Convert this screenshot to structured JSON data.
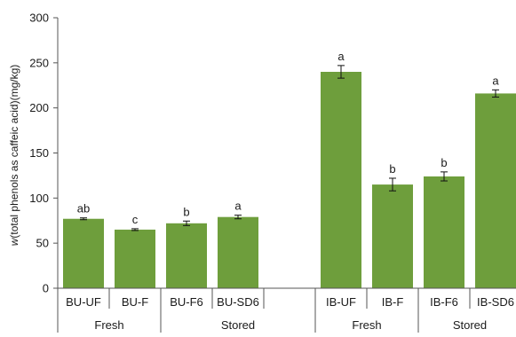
{
  "chart_data": {
    "type": "bar",
    "ylabel_italic": "w",
    "ylabel_rest": "(total phenols as  caffeic acid)(mg/kg)",
    "ylim": [
      0,
      300
    ],
    "yticks": [
      0,
      50,
      100,
      150,
      200,
      250,
      300
    ],
    "grid": false,
    "legend": "none",
    "bar_color": "#6e9e3c",
    "categories": [
      "BU-UF",
      "BU-F",
      "BU-F6",
      "BU-SD6",
      "",
      "IB-UF",
      "IB-F",
      "IB-F6",
      "IB-SD6"
    ],
    "values": [
      77,
      65,
      72,
      79,
      null,
      240,
      115,
      124,
      216
    ],
    "errors": [
      1,
      1,
      2.5,
      2,
      null,
      7,
      7,
      5,
      4
    ],
    "significance": [
      "ab",
      "c",
      "b",
      "a",
      "",
      "a",
      "b",
      "b",
      "a"
    ],
    "groups": [
      {
        "label": "Fresh",
        "from": 0,
        "to": 1
      },
      {
        "label": "Stored",
        "from": 2,
        "to": 4
      },
      {
        "label": "Fresh",
        "from": 5,
        "to": 6
      },
      {
        "label": "Stored",
        "from": 7,
        "to": 8
      }
    ]
  }
}
